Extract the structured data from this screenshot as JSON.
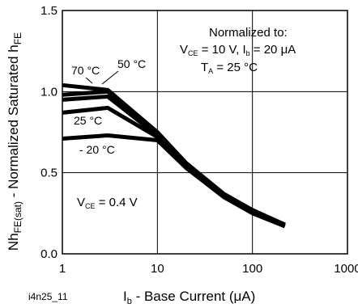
{
  "chart_data": {
    "type": "line",
    "xscale": "log",
    "xlim": [
      1,
      1000
    ],
    "ylim": [
      0.0,
      1.5
    ],
    "grid": true,
    "xlabel_main": "I",
    "xlabel_sub": "b",
    "xlabel_rest": " - Base Current (μA)",
    "ylabel_main": "Nh",
    "ylabel_sub1": "FE(sat)",
    "ylabel_mid": " - Normalized Saturated h",
    "ylabel_sub2": "FE",
    "x_ticks": [
      {
        "value": 1,
        "label": "1"
      },
      {
        "value": 10,
        "label": "10"
      },
      {
        "value": 100,
        "label": "100"
      },
      {
        "value": 1000,
        "label": "1000"
      }
    ],
    "y_ticks": [
      {
        "value": 0.0,
        "label": "0.0"
      },
      {
        "value": 0.5,
        "label": "0.5"
      },
      {
        "value": 1.0,
        "label": "1.0"
      },
      {
        "value": 1.5,
        "label": "1.5"
      }
    ],
    "series": [
      {
        "name": "70 °C",
        "x": [
          1,
          3,
          10,
          20,
          50,
          100,
          220
        ],
        "y": [
          1.04,
          1.01,
          0.75,
          0.56,
          0.37,
          0.27,
          0.18
        ]
      },
      {
        "name": "50 °C",
        "x": [
          1,
          3,
          10,
          20,
          50,
          100,
          220
        ],
        "y": [
          0.98,
          1.0,
          0.74,
          0.55,
          0.36,
          0.26,
          0.18
        ]
      },
      {
        "name": "25 °C",
        "x": [
          1,
          3,
          10,
          20,
          50,
          100,
          220
        ],
        "y": [
          0.87,
          0.9,
          0.72,
          0.54,
          0.36,
          0.26,
          0.18
        ]
      },
      {
        "name": "- 20 °C",
        "x": [
          1,
          3,
          10,
          20,
          50,
          100,
          220
        ],
        "y": [
          0.71,
          0.73,
          0.7,
          0.53,
          0.35,
          0.25,
          0.17
        ]
      },
      {
        "name": "",
        "x": [
          1,
          3,
          10,
          20,
          50,
          100,
          220
        ],
        "y": [
          0.95,
          0.97,
          0.73,
          0.55,
          0.36,
          0.26,
          0.18
        ]
      }
    ],
    "annotations": {
      "normalized_title": "Normalized to:",
      "cond_line1_v": "V",
      "cond_line1_vsub": "CE",
      "cond_line1_mid": " = 10 V, I",
      "cond_line1_isub": "b",
      "cond_line1_end": " = 20 μA",
      "cond_line2_t": "T",
      "cond_line2_tsub": "A",
      "cond_line2_end": " = 25 °C",
      "vce_v": "V",
      "vce_sub": "CE",
      "vce_end": " = 0.4 V"
    },
    "figure_id": "i4n25_11"
  }
}
